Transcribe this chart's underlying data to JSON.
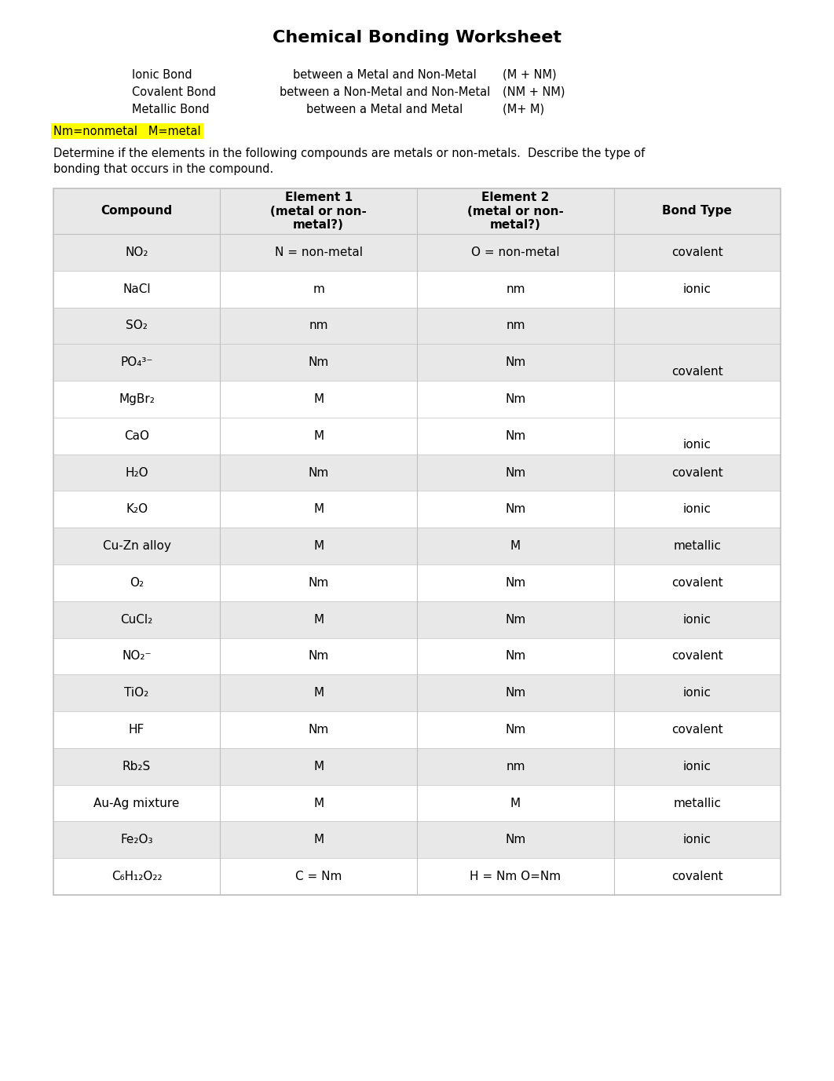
{
  "title": "Chemical Bonding Worksheet",
  "bond_definitions": [
    {
      "name": "Ionic Bond",
      "desc": "between a Metal and Non-Metal",
      "formula": "(M + NM)"
    },
    {
      "name": "Covalent Bond",
      "desc": "between a Non-Metal and Non-Metal",
      "formula": "(NM + NM)"
    },
    {
      "name": "Metallic Bond",
      "desc": "between a Metal and Metal",
      "formula": "(M+ M)"
    }
  ],
  "highlight_text": "Nm=nonmetal   M=metal",
  "instruction": "Determine if the elements in the following compounds are metals or non-metals.  Describe the type of\nbonding that occurs in the compound.",
  "table_headers": [
    "Compound",
    "Element 1\n(metal or non-\nmetal?)",
    "Element 2\n(metal or non-\nmetal?)",
    "Bond Type"
  ],
  "rows": [
    {
      "compound": "NO₂",
      "el1": "N = non-metal",
      "el2": "O = non-metal",
      "bond": "covalent",
      "shaded": true
    },
    {
      "compound": "NaCl",
      "el1": "m",
      "el2": "nm",
      "bond": "ionic",
      "shaded": false
    },
    {
      "compound": "SO₂",
      "el1": "nm",
      "el2": "nm",
      "bond": "",
      "shaded": true
    },
    {
      "compound": "PO₄³⁻",
      "el1": "Nm",
      "el2": "Nm",
      "bond": "covalent",
      "bond_offset": true,
      "shaded": true
    },
    {
      "compound": "MgBr₂",
      "el1": "M",
      "el2": "Nm",
      "bond": "",
      "shaded": false
    },
    {
      "compound": "CaO",
      "el1": "M",
      "el2": "Nm",
      "bond": "ionic",
      "bond_offset": true,
      "shaded": false
    },
    {
      "compound": "H₂O",
      "el1": "Nm",
      "el2": "Nm",
      "bond": "covalent",
      "shaded": true
    },
    {
      "compound": "K₂O",
      "el1": "M",
      "el2": "Nm",
      "bond": "ionic",
      "shaded": false
    },
    {
      "compound": "Cu-Zn alloy",
      "el1": "M",
      "el2": "M",
      "bond": "metallic",
      "shaded": true
    },
    {
      "compound": "O₂",
      "el1": "Nm",
      "el2": "Nm",
      "bond": "covalent",
      "shaded": false
    },
    {
      "compound": "CuCl₂",
      "el1": "M",
      "el2": "Nm",
      "bond": "ionic",
      "shaded": true
    },
    {
      "compound": "NO₂⁻",
      "el1": "Nm",
      "el2": "Nm",
      "bond": "covalent",
      "shaded": false
    },
    {
      "compound": "TiO₂",
      "el1": "M",
      "el2": "Nm",
      "bond": "ionic",
      "shaded": true
    },
    {
      "compound": "HF",
      "el1": "Nm",
      "el2": "Nm",
      "bond": "covalent",
      "shaded": false
    },
    {
      "compound": "Rb₂S",
      "el1": "M",
      "el2": "nm",
      "bond": "ionic",
      "shaded": true
    },
    {
      "compound": "Au-Ag mixture",
      "el1": "M",
      "el2": "M",
      "bond": "metallic",
      "shaded": false
    },
    {
      "compound": "Fe₂O₃",
      "el1": "M",
      "el2": "Nm",
      "bond": "ionic",
      "shaded": true
    },
    {
      "compound": "C₆H₁₂O₂₂",
      "el1": "C = Nm",
      "el2": "H = Nm O=Nm",
      "bond": "covalent",
      "shaded": false
    }
  ],
  "background_color": "#ffffff",
  "shaded_color": "#e8e8e8",
  "table_border_color": "#c0c0c0"
}
